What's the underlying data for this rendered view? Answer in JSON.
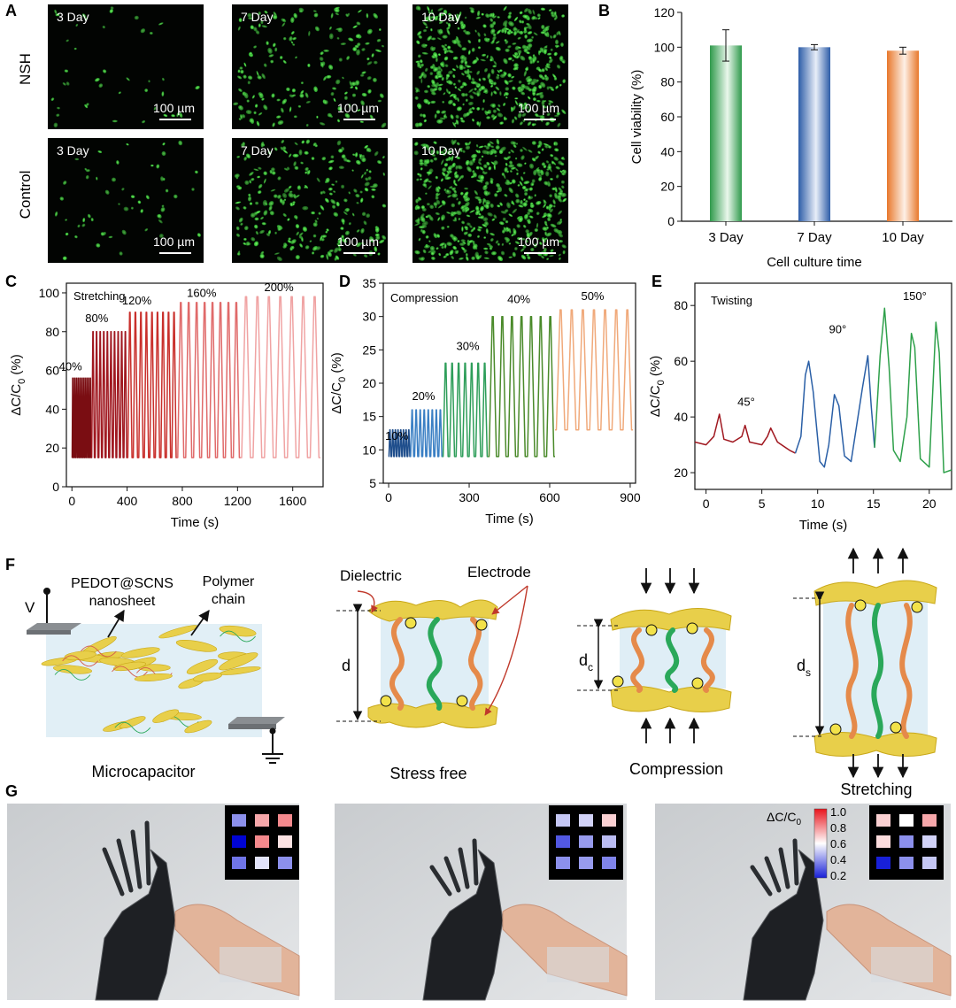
{
  "panels": {
    "A": {
      "label": "A",
      "row_labels": [
        "NSH",
        "Control"
      ],
      "day_labels": [
        "3 Day",
        "7 Day",
        "10 Day"
      ],
      "scale_bar": "100 µm"
    },
    "B": {
      "label": "B"
    },
    "C": {
      "label": "C"
    },
    "D": {
      "label": "D"
    },
    "E": {
      "label": "E"
    },
    "F": {
      "label": "F",
      "microcapacitor": {
        "v_label": "V",
        "sheet_label_1": "PEDOT@SCNS",
        "sheet_label_2": "nanosheet",
        "polymer_label_1": "Polymer",
        "polymer_label_2": "chain",
        "caption": "Microcapacitor"
      },
      "stress_free": {
        "dielectric": "Dielectric",
        "electrode": "Electrode",
        "d": "d",
        "caption": "Stress free"
      },
      "compression": {
        "d": "d",
        "sub": "c",
        "caption": "Compression"
      },
      "stretching": {
        "d": "d",
        "sub": "s",
        "caption": "Stretching"
      }
    },
    "G": {
      "label": "G",
      "colorbar": {
        "title": "ΔC/C",
        "sub": "0",
        "ticks": [
          "1.0",
          "0.8",
          "0.6",
          "0.4",
          "0.2"
        ]
      },
      "heatmaps": [
        [
          [
            0.4,
            0.75,
            0.8
          ],
          [
            0.15,
            0.8,
            0.65
          ],
          [
            0.35,
            0.55,
            0.4
          ]
        ],
        [
          [
            0.5,
            0.52,
            0.68
          ],
          [
            0.3,
            0.42,
            0.48
          ],
          [
            0.4,
            0.42,
            0.38
          ]
        ],
        [
          [
            0.68,
            0.6,
            0.75
          ],
          [
            0.66,
            0.4,
            0.52
          ],
          [
            0.2,
            0.4,
            0.5
          ]
        ]
      ]
    }
  },
  "chart_data": [
    {
      "panel": "B",
      "type": "bar",
      "categories": [
        "3 Day",
        "7 Day",
        "10 Day"
      ],
      "values": [
        101,
        100,
        98
      ],
      "errors": [
        9,
        1.5,
        2
      ],
      "xlabel": "Cell culture time",
      "ylabel": "Cell viability (%)",
      "ylim": [
        0,
        120
      ],
      "yticks": [
        0,
        20,
        40,
        60,
        80,
        100,
        120
      ],
      "colors": [
        "#3aa655",
        "#3f6fb5",
        "#e8823a"
      ]
    },
    {
      "panel": "C",
      "type": "line",
      "annotation": "Stretching",
      "xlabel": "Time (s)",
      "ylabel": "ΔC/C",
      "ylabel_sub": "0",
      "ylabel_unit": " (%)",
      "xlim": [
        -40,
        1820
      ],
      "ylim": [
        0,
        105
      ],
      "xticks": [
        0,
        400,
        800,
        1200,
        1600
      ],
      "yticks": [
        0,
        20,
        40,
        60,
        80,
        100
      ],
      "series": [
        {
          "name": "40%",
          "x0": 0,
          "x1": 140,
          "cycles": 11,
          "min": 15,
          "max": 56,
          "color": "#7a0d12",
          "label_x": -10,
          "label_y": 60
        },
        {
          "name": "80%",
          "x0": 140,
          "x1": 400,
          "cycles": 10,
          "min": 15,
          "max": 80,
          "color": "#a01820",
          "label_x": 180,
          "label_y": 85
        },
        {
          "name": "120%",
          "x0": 400,
          "x1": 760,
          "cycles": 9,
          "min": 15,
          "max": 90,
          "color": "#c9302c",
          "label_x": 470,
          "label_y": 94
        },
        {
          "name": "160%",
          "x0": 760,
          "x1": 1220,
          "cycles": 8,
          "min": 15,
          "max": 95,
          "color": "#e06a6a",
          "label_x": 940,
          "label_y": 98
        },
        {
          "name": "200%",
          "x0": 1220,
          "x1": 1800,
          "cycles": 7,
          "min": 15,
          "max": 98,
          "color": "#f0a3a3",
          "label_x": 1500,
          "label_y": 101
        }
      ]
    },
    {
      "panel": "D",
      "type": "line",
      "annotation": "Compression",
      "xlabel": "Time (s)",
      "ylabel": "ΔC/C",
      "ylabel_sub": "0",
      "ylabel_unit": " (%)",
      "xlim": [
        -20,
        920
      ],
      "ylim": [
        5,
        35
      ],
      "xticks": [
        0,
        300,
        600,
        900
      ],
      "yticks": [
        5,
        10,
        15,
        20,
        25,
        30,
        35
      ],
      "series": [
        {
          "name": "10%",
          "x0": 0,
          "x1": 80,
          "cycles": 8,
          "min": 9,
          "max": 13,
          "color": "#1f4e8c",
          "label_x": 30,
          "label_y": 11.5
        },
        {
          "name": "20%",
          "x0": 80,
          "x1": 200,
          "cycles": 8,
          "min": 9,
          "max": 16,
          "color": "#3a7fc4",
          "label_x": 130,
          "label_y": 17.5
        },
        {
          "name": "30%",
          "x0": 200,
          "x1": 370,
          "cycles": 7,
          "min": 9,
          "max": 23,
          "color": "#2e9e5a",
          "label_x": 295,
          "label_y": 25
        },
        {
          "name": "40%",
          "x0": 370,
          "x1": 620,
          "cycles": 7,
          "min": 9,
          "max": 30,
          "color": "#4a8a2a",
          "label_x": 485,
          "label_y": 32
        },
        {
          "name": "50%",
          "x0": 620,
          "x1": 910,
          "cycles": 7,
          "min": 13,
          "max": 31,
          "color": "#f0a97a",
          "label_x": 760,
          "label_y": 32.5
        }
      ]
    },
    {
      "panel": "E",
      "type": "line",
      "annotation": "Twisting",
      "xlabel": "Time (s)",
      "ylabel": "ΔC/C",
      "ylabel_sub": "0",
      "ylabel_unit": " (%)",
      "xlim": [
        -1,
        22
      ],
      "ylim": [
        14,
        88
      ],
      "xticks": [
        0,
        5,
        10,
        15,
        20
      ],
      "yticks": [
        20,
        40,
        60,
        80
      ],
      "series": [
        {
          "name": "45°",
          "color": "#a01820",
          "label_x": 3.6,
          "label_y": 44,
          "points": [
            [
              -1,
              31
            ],
            [
              0,
              30
            ],
            [
              0.7,
              33
            ],
            [
              1.2,
              41
            ],
            [
              1.6,
              32
            ],
            [
              2.4,
              31
            ],
            [
              3.2,
              33
            ],
            [
              3.5,
              37
            ],
            [
              3.9,
              31
            ],
            [
              5,
              30
            ],
            [
              5.5,
              33
            ],
            [
              5.8,
              36
            ],
            [
              6.4,
              31
            ],
            [
              7.5,
              28
            ],
            [
              8,
              27
            ]
          ]
        },
        {
          "name": "90°",
          "color": "#2a5fa6",
          "label_x": 11.8,
          "label_y": 70,
          "points": [
            [
              8,
              27
            ],
            [
              8.5,
              33
            ],
            [
              8.9,
              55
            ],
            [
              9.2,
              60
            ],
            [
              9.6,
              49
            ],
            [
              10.2,
              24
            ],
            [
              10.6,
              22
            ],
            [
              11,
              30
            ],
            [
              11.5,
              48
            ],
            [
              11.9,
              44
            ],
            [
              12.4,
              26
            ],
            [
              13,
              24
            ],
            [
              14,
              50
            ],
            [
              14.5,
              62
            ],
            [
              14.8,
              44
            ],
            [
              15.1,
              29
            ]
          ]
        },
        {
          "name": "150°",
          "color": "#2ea04a",
          "label_x": 18.7,
          "label_y": 82,
          "points": [
            [
              15.1,
              29
            ],
            [
              15.6,
              62
            ],
            [
              16,
              79
            ],
            [
              16.4,
              58
            ],
            [
              16.8,
              28
            ],
            [
              17.4,
              24
            ],
            [
              18,
              40
            ],
            [
              18.4,
              70
            ],
            [
              18.7,
              65
            ],
            [
              19.2,
              25
            ],
            [
              20,
              22
            ],
            [
              20.6,
              74
            ],
            [
              20.9,
              63
            ],
            [
              21.3,
              20
            ],
            [
              22,
              21
            ]
          ]
        }
      ]
    }
  ]
}
